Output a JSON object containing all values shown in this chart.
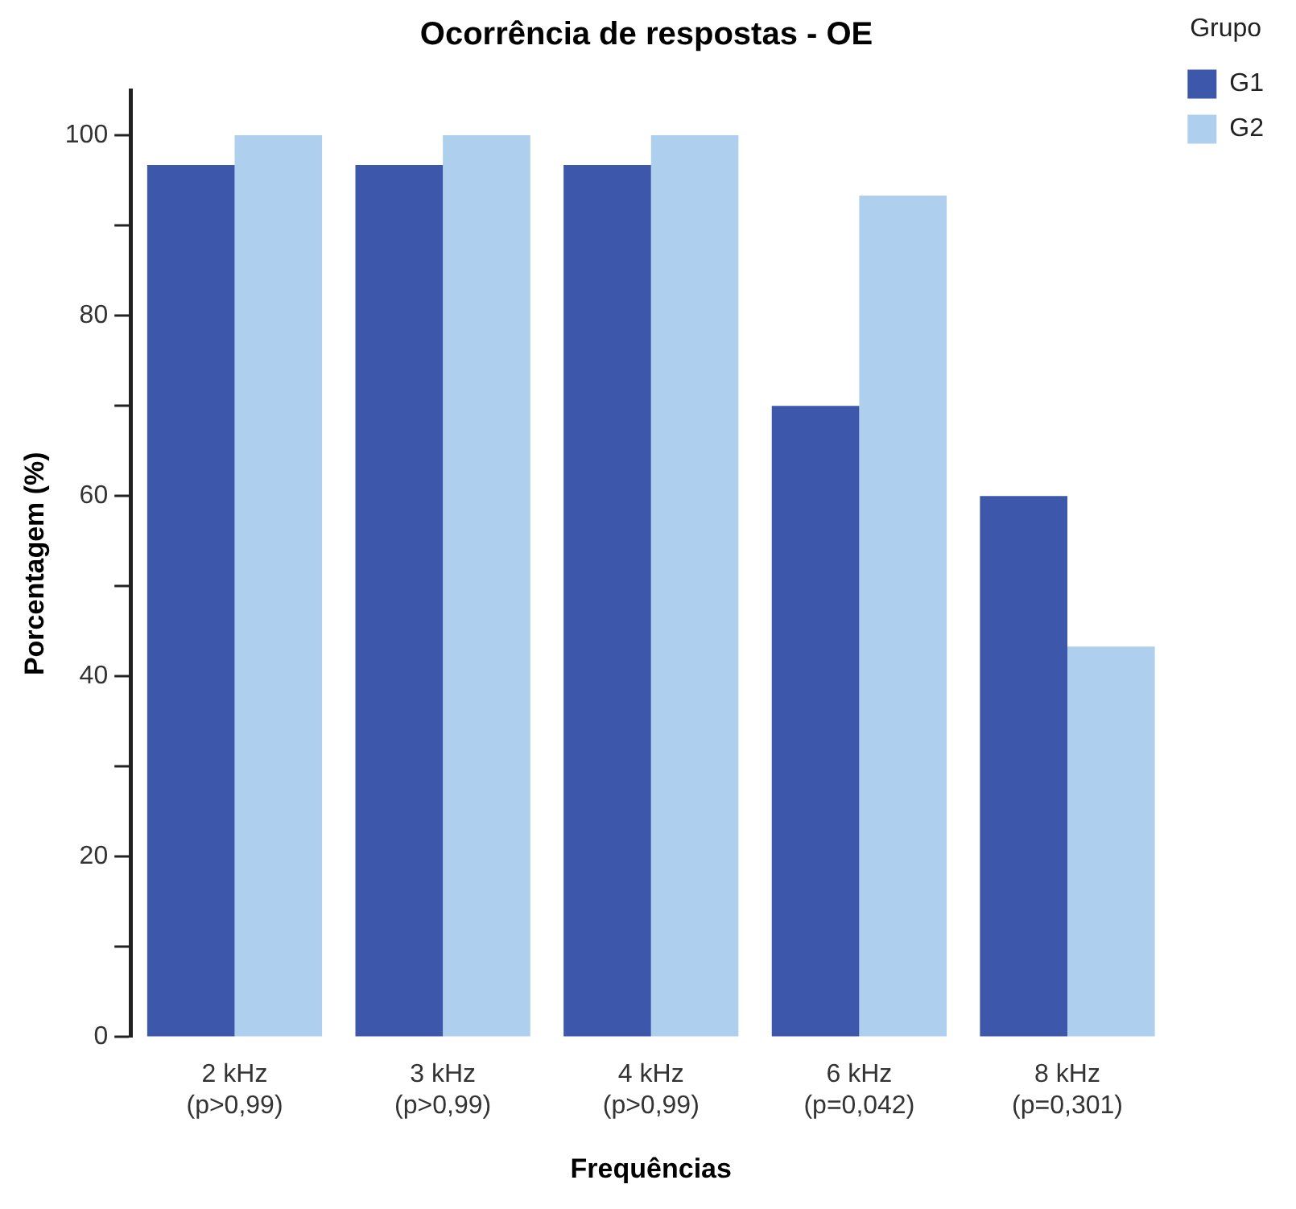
{
  "chart_data": {
    "type": "bar",
    "title": "Ocorrência de respostas - OE",
    "xlabel": "Frequências",
    "ylabel": "Porcentagem (%)",
    "legend_title": "Grupo",
    "legend": "top right",
    "grid": false,
    "categories": [
      "2 kHz\n(p>0,99)",
      "3 kHz\n(p>0,99)",
      "4 kHz\n(p>0,99)",
      "6 kHz\n(p=0,042)",
      "8 kHz\n(p=0,301)"
    ],
    "series": [
      {
        "name": "G1",
        "color": "#3d57ab",
        "values": [
          96.7,
          96.7,
          96.7,
          70,
          60
        ]
      },
      {
        "name": "G2",
        "color": "#aecfee",
        "values": [
          100,
          100,
          100,
          93.3,
          43.3
        ]
      }
    ],
    "ylim": [
      0,
      105
    ],
    "yticks": [
      0,
      {
        "value": 10,
        "label": null
      },
      20,
      {
        "value": 30,
        "label": null
      },
      40,
      {
        "value": 50,
        "label": null
      },
      60,
      {
        "value": 70,
        "label": null
      },
      80,
      {
        "value": 90,
        "label": null
      },
      100
    ]
  }
}
